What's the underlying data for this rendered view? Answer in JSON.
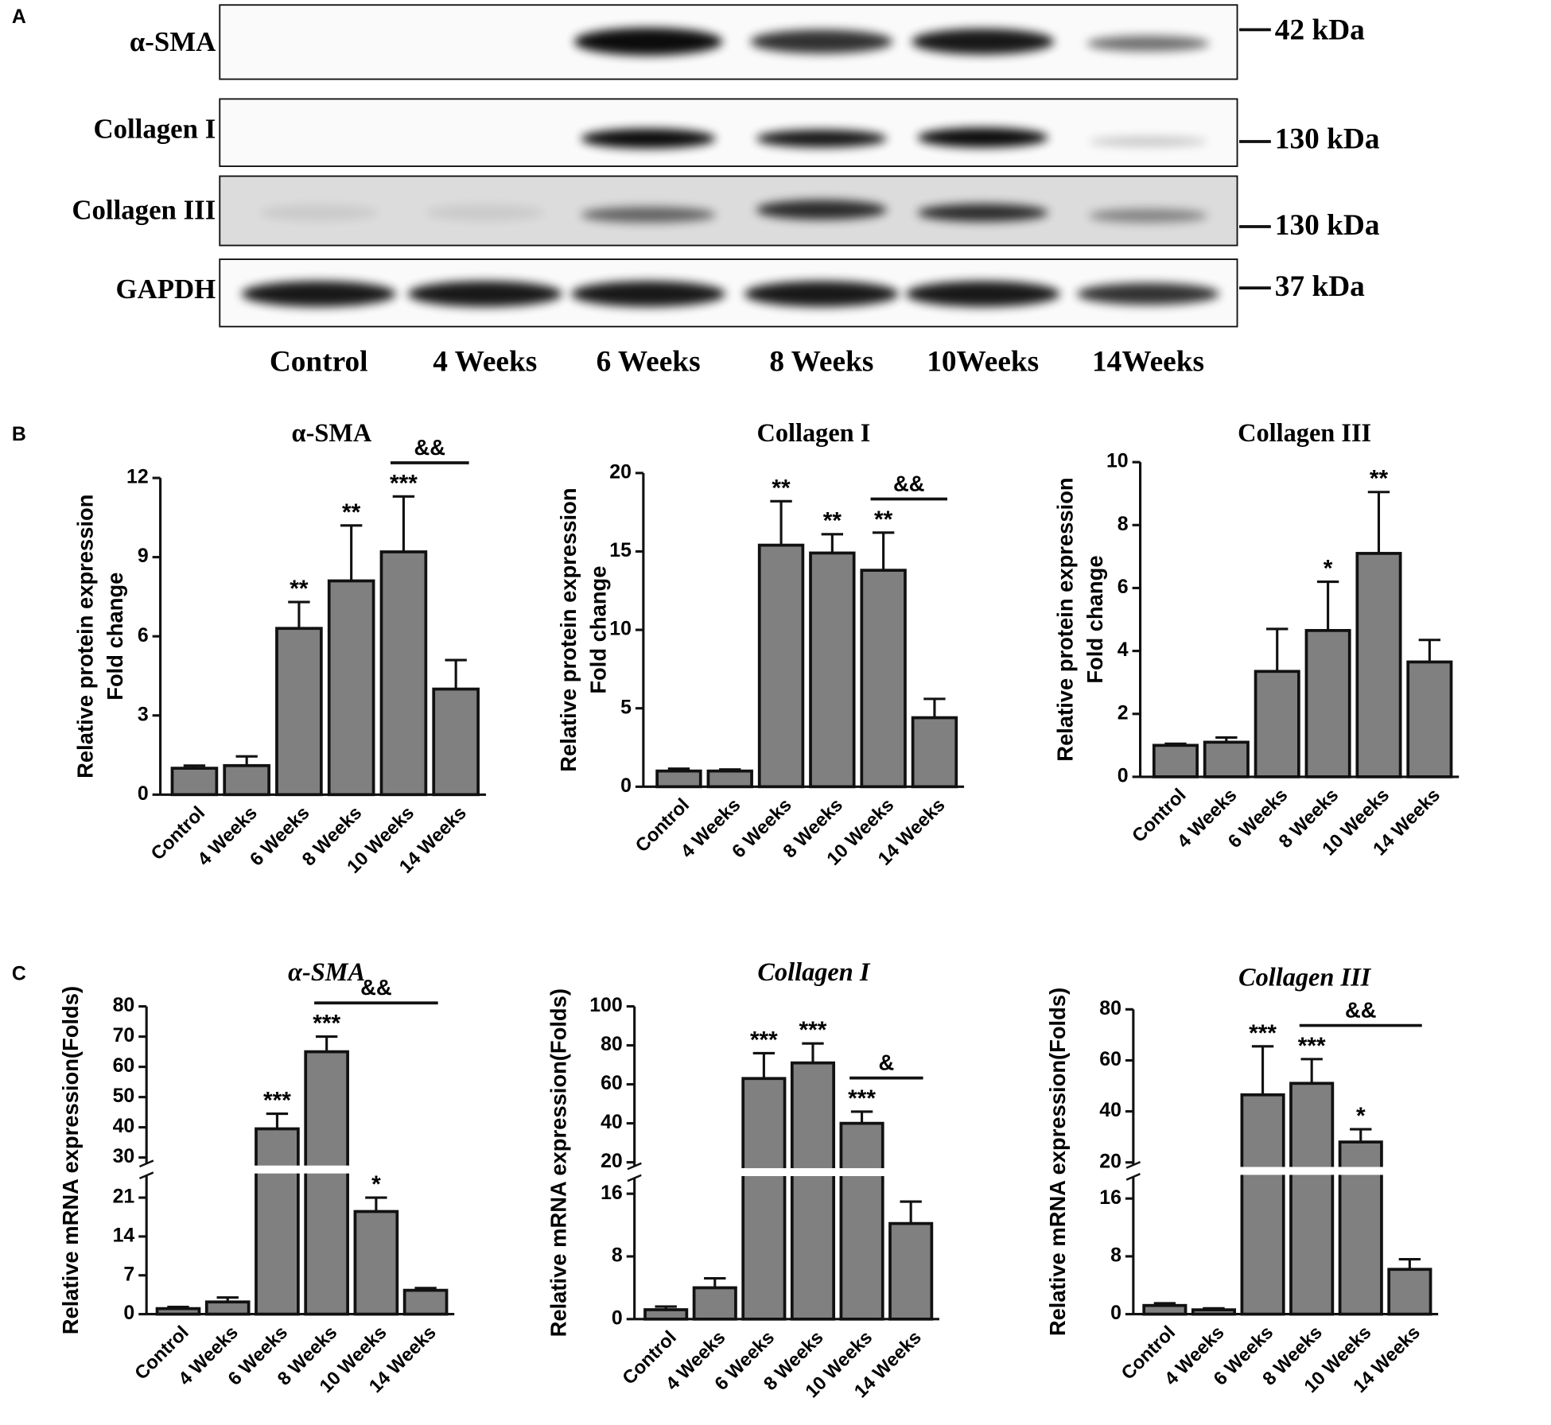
{
  "panels": [
    "A",
    "B",
    "C"
  ],
  "blot": {
    "rows": [
      {
        "label": "α-SMA",
        "size": "42 kDa"
      },
      {
        "label": "Collagen I",
        "size": "130 kDa"
      },
      {
        "label": "Collagen III",
        "size": "130 kDa"
      },
      {
        "label": "GAPDH",
        "size": "37 kDa"
      }
    ],
    "lanes": [
      "Control",
      "4 Weeks",
      "6 Weeks",
      "8 Weeks",
      "10Weeks",
      "14Weeks"
    ]
  },
  "chart_data": [
    {
      "type": "bar",
      "title": "α-SMA",
      "italic_title": false,
      "ylabel": [
        "Relative protein expression",
        "Fold change"
      ],
      "categories": [
        "Control",
        "4 Weeks",
        "6 Weeks",
        "8 Weeks",
        "10 Weeks",
        "14 Weeks"
      ],
      "values": [
        1.0,
        1.1,
        6.3,
        8.1,
        9.2,
        4.0
      ],
      "errors": [
        0.1,
        0.35,
        1.0,
        2.1,
        2.1,
        1.1
      ],
      "color": "#808080",
      "ylim": [
        0,
        12
      ],
      "yticks": [
        0,
        3,
        6,
        9,
        12
      ],
      "annotations": [
        {
          "index": 2,
          "text": "**"
        },
        {
          "index": 3,
          "text": "**"
        },
        {
          "index": 4,
          "text": "***"
        }
      ],
      "brackets": [
        {
          "from": 4,
          "to": 5,
          "text": "&&"
        }
      ]
    },
    {
      "type": "bar",
      "title": "Collagen I",
      "italic_title": false,
      "ylabel": [
        "Relative protein expression",
        "Fold change"
      ],
      "categories": [
        "Control",
        "4 Weeks",
        "6 Weeks",
        "8 Weeks",
        "10 Weeks",
        "14 Weeks"
      ],
      "values": [
        1.0,
        1.0,
        15.4,
        14.9,
        13.8,
        4.4
      ],
      "errors": [
        0.15,
        0.1,
        2.8,
        1.2,
        2.4,
        1.2
      ],
      "color": "#808080",
      "ylim": [
        0,
        20
      ],
      "yticks": [
        0,
        5,
        10,
        15,
        20
      ],
      "annotations": [
        {
          "index": 2,
          "text": "**"
        },
        {
          "index": 3,
          "text": "**"
        },
        {
          "index": 4,
          "text": "**"
        }
      ],
      "brackets": [
        {
          "from": 4,
          "to": 5,
          "text": "&&"
        }
      ]
    },
    {
      "type": "bar",
      "title": "Collagen III",
      "italic_title": false,
      "ylabel": [
        "Relative protein expression",
        "Fold change"
      ],
      "categories": [
        "Control",
        "4 Weeks",
        "6 Weeks",
        "8 Weeks",
        "10 Weeks",
        "14 Weeks"
      ],
      "values": [
        1.0,
        1.1,
        3.35,
        4.65,
        7.1,
        3.65
      ],
      "errors": [
        0.05,
        0.15,
        1.35,
        1.55,
        1.95,
        0.7
      ],
      "color": "#808080",
      "ylim": [
        0,
        10
      ],
      "yticks": [
        0,
        2,
        4,
        6,
        8,
        10
      ],
      "annotations": [
        {
          "index": 3,
          "text": "*"
        },
        {
          "index": 4,
          "text": "**"
        }
      ],
      "brackets": []
    },
    {
      "type": "bar",
      "title": "α-SMA",
      "italic_title": true,
      "ylabel": [
        "Relative mRNA expression(Folds)"
      ],
      "categories": [
        "Control",
        "4 Weeks",
        "6 Weeks",
        "8 Weeks",
        "10 Weeks",
        "14 Weeks"
      ],
      "values": [
        1.0,
        2.2,
        39.5,
        65,
        18.5,
        4.3
      ],
      "errors": [
        0.3,
        0.8,
        5,
        5,
        2.5,
        0.4
      ],
      "color": "#808080",
      "ylim": [
        0,
        80
      ],
      "ybreak": [
        25,
        28
      ],
      "yticks": [
        0,
        7,
        14,
        21,
        30,
        40,
        50,
        60,
        70,
        80
      ],
      "annotations": [
        {
          "index": 2,
          "text": "***"
        },
        {
          "index": 3,
          "text": "***"
        },
        {
          "index": 4,
          "text": "*"
        }
      ],
      "brackets": [
        {
          "from": 3,
          "to": 5,
          "text": "&&"
        }
      ]
    },
    {
      "type": "bar",
      "title": "Collagen I",
      "italic_title": true,
      "ylabel": [
        "Relative mRNA expression(Folds)"
      ],
      "categories": [
        "Control",
        "4 Weeks",
        "6 Weeks",
        "8 Weeks",
        "10 Weeks",
        "14 Weeks"
      ],
      "values": [
        1.2,
        4.0,
        63,
        71,
        40,
        12.2
      ],
      "errors": [
        0.4,
        1.2,
        13,
        10,
        6,
        2.8
      ],
      "color": "#808080",
      "ylim": [
        0,
        100
      ],
      "ybreak": [
        18,
        18
      ],
      "yticks": [
        0,
        8,
        16,
        20,
        40,
        60,
        80,
        100
      ],
      "annotations": [
        {
          "index": 2,
          "text": "***"
        },
        {
          "index": 3,
          "text": "***"
        },
        {
          "index": 4,
          "text": "***"
        }
      ],
      "brackets": [
        {
          "from": 4,
          "to": 5,
          "text": "&"
        }
      ]
    },
    {
      "type": "bar",
      "title": "Collagen III",
      "italic_title": true,
      "ylabel": [
        "Relative mRNA expression(Folds)"
      ],
      "categories": [
        "Control",
        "4 Weeks",
        "6 Weeks",
        "8 Weeks",
        "10 Weeks",
        "14 Weeks"
      ],
      "values": [
        1.2,
        0.6,
        46.5,
        51,
        28,
        6.2
      ],
      "errors": [
        0.3,
        0.2,
        19,
        9.5,
        5,
        1.4
      ],
      "color": "#808080",
      "ylim": [
        0,
        80
      ],
      "ybreak": [
        19,
        19
      ],
      "yticks": [
        0,
        8,
        16,
        20,
        40,
        60,
        80
      ],
      "annotations": [
        {
          "index": 2,
          "text": "***"
        },
        {
          "index": 3,
          "text": "***"
        },
        {
          "index": 4,
          "text": "*"
        }
      ],
      "brackets": [
        {
          "from": 3,
          "to": 5,
          "text": "&&"
        }
      ]
    }
  ]
}
